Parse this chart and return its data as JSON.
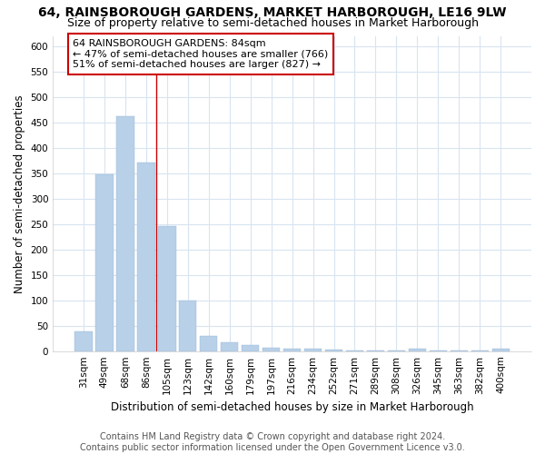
{
  "title": "64, RAINSBOROUGH GARDENS, MARKET HARBOROUGH, LE16 9LW",
  "subtitle": "Size of property relative to semi-detached houses in Market Harborough",
  "xlabel": "Distribution of semi-detached houses by size in Market Harborough",
  "ylabel": "Number of semi-detached properties",
  "categories": [
    "31sqm",
    "49sqm",
    "68sqm",
    "86sqm",
    "105sqm",
    "123sqm",
    "142sqm",
    "160sqm",
    "179sqm",
    "197sqm",
    "216sqm",
    "234sqm",
    "252sqm",
    "271sqm",
    "289sqm",
    "308sqm",
    "326sqm",
    "345sqm",
    "363sqm",
    "382sqm",
    "400sqm"
  ],
  "values": [
    38,
    348,
    462,
    372,
    247,
    100,
    30,
    18,
    12,
    7,
    5,
    4,
    3,
    1,
    1,
    1,
    4,
    1,
    1,
    1,
    5
  ],
  "highlight_index": 3,
  "highlight_color": "#c8ddf0",
  "bar_color": "#b8d0e8",
  "highlight_line_color": "#cc0000",
  "annotation_text": "64 RAINSBOROUGH GARDENS: 84sqm\n← 47% of semi-detached houses are smaller (766)\n51% of semi-detached houses are larger (827) →",
  "annotation_box_color": "#ffffff",
  "annotation_box_edgecolor": "#cc0000",
  "footer_line1": "Contains HM Land Registry data © Crown copyright and database right 2024.",
  "footer_line2": "Contains public sector information licensed under the Open Government Licence v3.0.",
  "ylim": [
    0,
    620
  ],
  "yticks": [
    0,
    50,
    100,
    150,
    200,
    250,
    300,
    350,
    400,
    450,
    500,
    550,
    600
  ],
  "background_color": "#ffffff",
  "grid_color": "#d8e4f0",
  "title_fontsize": 10,
  "subtitle_fontsize": 9,
  "axis_label_fontsize": 8.5,
  "tick_fontsize": 7.5,
  "annotation_fontsize": 8,
  "footer_fontsize": 7
}
